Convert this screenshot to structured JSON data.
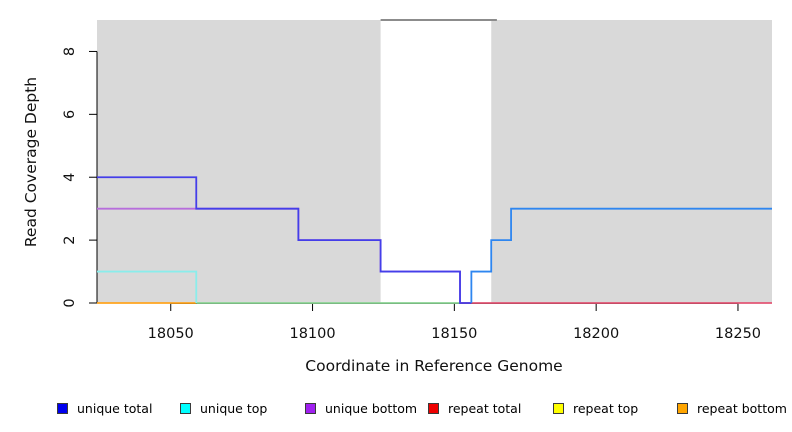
{
  "chart_data": {
    "type": "line",
    "subtype": "step-coverage",
    "title": "",
    "xlabel": "Coordinate in Reference Genome",
    "ylabel": "Read Coverage Depth",
    "xlim": [
      18024,
      18262
    ],
    "ylim": [
      0,
      9
    ],
    "x_ticks": [
      18050,
      18100,
      18150,
      18200,
      18250
    ],
    "y_ticks": [
      0,
      2,
      4,
      6,
      8
    ],
    "grid": "off",
    "legend_position": "bottom",
    "background_color": "#ffffff",
    "shaded_regions": [
      {
        "name": "left",
        "from": 18024,
        "to": 18124,
        "color": "#d9d9d9"
      },
      {
        "name": "right",
        "from": 18163,
        "to": 18262,
        "color": "#d9d9d9"
      }
    ],
    "series": [
      {
        "name": "repeat-baseline-left",
        "color": "#ffa41e",
        "points": [
          [
            18024,
            0
          ],
          [
            18059,
            0
          ]
        ]
      },
      {
        "name": "overlap-baseline-mid",
        "color": "#8cd494",
        "points": [
          [
            18059,
            0
          ],
          [
            18152,
            0
          ]
        ]
      },
      {
        "name": "repeat-total-baseline-right",
        "color": "#e25674",
        "points": [
          [
            18152,
            0
          ],
          [
            18262,
            0
          ]
        ]
      },
      {
        "name": "unique-top",
        "color": "#8aedeb",
        "points": [
          [
            18024,
            1
          ],
          [
            18059,
            1
          ],
          [
            18059,
            0
          ]
        ]
      },
      {
        "name": "unique-bottom",
        "color": "#b76edc",
        "points": [
          [
            18024,
            3
          ],
          [
            18095,
            3
          ],
          [
            18095,
            2
          ],
          [
            18124,
            2
          ],
          [
            18124,
            1
          ],
          [
            18152,
            1
          ],
          [
            18152,
            0
          ]
        ]
      },
      {
        "name": "unique-total",
        "color": "#443ee9",
        "points": [
          [
            18024,
            4
          ],
          [
            18059,
            4
          ],
          [
            18059,
            3
          ],
          [
            18095,
            3
          ],
          [
            18095,
            2
          ],
          [
            18124,
            2
          ],
          [
            18124,
            1
          ],
          [
            18152,
            1
          ],
          [
            18152,
            0
          ],
          [
            18156,
            0
          ]
        ]
      },
      {
        "name": "total-right",
        "color": "#2e86f0",
        "points": [
          [
            18156,
            0
          ],
          [
            18156,
            1
          ],
          [
            18163,
            1
          ],
          [
            18163,
            2
          ],
          [
            18170,
            2
          ],
          [
            18170,
            3
          ],
          [
            18262,
            3
          ]
        ]
      },
      {
        "name": "clipped-top",
        "color": "#8c8c8c",
        "width": 2,
        "points": [
          [
            18124,
            9
          ],
          [
            18165,
            9
          ]
        ]
      }
    ],
    "legend": [
      {
        "label": "unique total",
        "color": "#0000ee"
      },
      {
        "label": "unique top",
        "color": "#00ffff"
      },
      {
        "label": "unique bottom",
        "color": "#a020f0"
      },
      {
        "label": "repeat total",
        "color": "#ee0000"
      },
      {
        "label": "repeat top",
        "color": "#ffff00"
      },
      {
        "label": "repeat bottom",
        "color": "#ffa500"
      }
    ]
  }
}
